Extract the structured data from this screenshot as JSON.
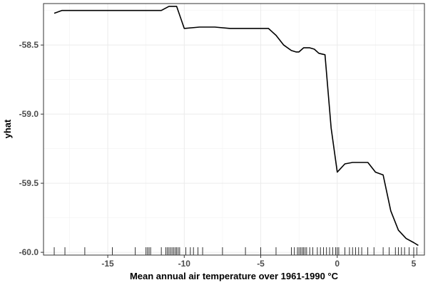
{
  "chart_data": {
    "type": "line",
    "title": "",
    "xlabel": "Mean annual air temperature over 1961-1990 °C",
    "ylabel": "yhat",
    "xlim": [
      -19.2,
      5.7
    ],
    "ylim": [
      -60.02,
      -58.2
    ],
    "x_ticks": [
      -15,
      -10,
      -5,
      0,
      5
    ],
    "x_tick_labels": [
      "-15",
      "-10",
      "-5",
      "0",
      "5"
    ],
    "y_ticks": [
      -58.5,
      -59.0,
      -59.5,
      -60.0
    ],
    "y_tick_labels": [
      "-58.5",
      "-59.0",
      "-59.5",
      "-60.0"
    ],
    "grid": true,
    "legend": "none",
    "series": [
      {
        "x": [
          -18.5,
          -18.0,
          -17.0,
          -15.0,
          -13.0,
          -11.5,
          -11.0,
          -10.5,
          -10.0,
          -9.0,
          -8.0,
          -7.0,
          -6.0,
          -5.0,
          -4.5,
          -4.0,
          -3.5,
          -3.0,
          -2.7,
          -2.5,
          -2.2,
          -1.8,
          -1.5,
          -1.2,
          -0.8,
          -0.4,
          0.0,
          0.5,
          1.0,
          1.5,
          2.0,
          2.5,
          3.0,
          3.5,
          4.0,
          4.5,
          5.0,
          5.3
        ],
        "y": [
          -58.27,
          -58.25,
          -58.25,
          -58.25,
          -58.25,
          -58.25,
          -58.22,
          -58.22,
          -58.38,
          -58.37,
          -58.37,
          -58.38,
          -58.38,
          -58.38,
          -58.38,
          -58.43,
          -58.5,
          -58.54,
          -58.55,
          -58.55,
          -58.52,
          -58.52,
          -58.53,
          -58.56,
          -58.57,
          -59.1,
          -59.42,
          -59.36,
          -59.35,
          -59.35,
          -59.35,
          -59.42,
          -59.44,
          -59.7,
          -59.84,
          -59.9,
          -59.93,
          -59.95
        ]
      }
    ],
    "rug": [
      -18.5,
      -17.8,
      -16.5,
      -14.7,
      -13.2,
      -12.5,
      -12.4,
      -12.3,
      -12.2,
      -11.5,
      -11.2,
      -11.1,
      -11.0,
      -10.9,
      -10.8,
      -10.7,
      -10.6,
      -10.5,
      -10.4,
      -10.3,
      -9.9,
      -9.6,
      -9.4,
      -9.1,
      -8.8,
      -7.5,
      -6.0,
      -5.0,
      -4.0,
      -3.0,
      -2.8,
      -2.6,
      -2.5,
      -2.4,
      -2.3,
      -2.2,
      -2.1,
      -2.0,
      -1.8,
      -1.6,
      -1.3,
      -1.1,
      -0.9,
      -0.7,
      -0.5,
      -0.3,
      -0.1,
      0.0,
      0.1,
      0.5,
      0.8,
      1.0,
      1.2,
      1.4,
      1.6,
      2.0,
      2.4,
      3.0,
      3.4,
      3.8,
      4.0,
      4.2,
      4.4,
      4.7,
      5.0,
      5.2
    ]
  }
}
